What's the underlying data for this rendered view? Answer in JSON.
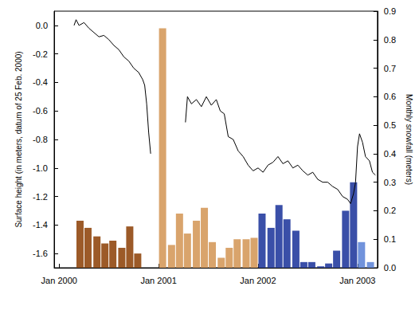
{
  "chart_data": {
    "type": "bar",
    "ylabel": "Surface height (in meters, datum of 25 Feb. 2000)",
    "y2label": "Monthly snowfall (meters)",
    "xlim": [
      1999.95,
      2003.2
    ],
    "xticks": [
      {
        "value": 2000,
        "label": "Jan 2000"
      },
      {
        "value": 2001,
        "label": "Jan 2001"
      },
      {
        "value": 2002,
        "label": "Jan 2002"
      },
      {
        "value": 2003,
        "label": "Jan 2003"
      }
    ],
    "ylim": [
      -1.7,
      0.1
    ],
    "yticks": [
      -1.6,
      -1.4,
      -1.2,
      {
        "value": -1.0,
        "label": "-1.0"
      },
      -0.8,
      -0.6,
      -0.4,
      -0.2,
      {
        "value": 0,
        "label": "0.0"
      }
    ],
    "y2lim": [
      0,
      0.9
    ],
    "y2ticks": [
      {
        "value": 0,
        "label": "0.0"
      },
      0.1,
      0.2,
      0.3,
      0.4,
      0.5,
      0.6,
      0.7,
      0.8,
      0.9
    ],
    "grid": false,
    "series": [
      {
        "type": "line",
        "axis": "y",
        "color": "#000000",
        "x": [
          2000.15,
          2000.17,
          2000.2,
          2000.25,
          2000.3,
          2000.35,
          2000.4,
          2000.45,
          2000.5,
          2000.55,
          2000.6,
          2000.65,
          2000.7,
          2000.75,
          2000.8,
          2000.84,
          2000.86,
          2000.88,
          2000.9,
          2000.92,
          2000.96,
          2001.27,
          2001.29,
          2001.33,
          2001.38,
          2001.43,
          2001.48,
          2001.53,
          2001.58,
          2001.62,
          2001.66,
          2001.7,
          2001.75,
          2001.8,
          2001.85,
          2001.9,
          2001.95,
          2002.0,
          2002.05,
          2002.1,
          2002.15,
          2002.2,
          2002.25,
          2002.3,
          2002.35,
          2002.4,
          2002.45,
          2002.5,
          2002.55,
          2002.6,
          2002.65,
          2002.7,
          2002.75,
          2002.8,
          2002.85,
          2002.9,
          2002.93,
          2002.96,
          2002.98,
          2003.0,
          2003.02,
          2003.05,
          2003.08,
          2003.12,
          2003.15,
          2003.18
        ],
        "values": [
          0.0,
          0.04,
          0.0,
          0.02,
          -0.02,
          -0.05,
          -0.08,
          -0.07,
          -0.1,
          -0.14,
          -0.17,
          -0.22,
          -0.25,
          -0.3,
          -0.33,
          -0.38,
          -0.42,
          -0.55,
          -0.75,
          -0.9,
          null,
          -0.68,
          -0.5,
          -0.55,
          -0.52,
          -0.57,
          -0.5,
          -0.56,
          -0.52,
          -0.6,
          -0.62,
          -0.78,
          -0.8,
          -0.88,
          -0.92,
          -0.98,
          -1.02,
          -1.0,
          -1.03,
          -0.98,
          -0.96,
          -0.92,
          -0.97,
          -0.95,
          -1.0,
          -0.98,
          -1.02,
          -1.05,
          -1.03,
          -1.08,
          -1.1,
          -1.1,
          -1.13,
          -1.15,
          -1.2,
          -1.22,
          -1.25,
          -1.18,
          -1.1,
          -0.85,
          -0.76,
          -0.82,
          -0.92,
          -0.95,
          -1.03,
          -1.05
        ]
      },
      {
        "type": "bar",
        "axis": "y2",
        "color": "#9c5a28",
        "x": [
          2000.21,
          2000.29,
          2000.38,
          2000.46,
          2000.54,
          2000.63,
          2000.71,
          2000.79
        ],
        "values": [
          0.165,
          0.14,
          0.11,
          0.085,
          0.095,
          0.07,
          0.145,
          0.05
        ]
      },
      {
        "type": "bar",
        "axis": "y2",
        "color": "#d9a46c",
        "x": [
          2001.04,
          2001.13,
          2001.21,
          2001.29,
          2001.38,
          2001.46,
          2001.54,
          2001.63,
          2001.71,
          2001.79,
          2001.88,
          2001.96
        ],
        "values": [
          0.84,
          0.08,
          0.19,
          0.12,
          0.165,
          0.21,
          0.09,
          0.035,
          0.07,
          0.1,
          0.1,
          0.105
        ]
      },
      {
        "type": "bar",
        "axis": "y2",
        "color": "#3a4fa8",
        "x": [
          2002.04,
          2002.13,
          2002.21,
          2002.29,
          2002.38,
          2002.46,
          2002.54,
          2002.63,
          2002.71,
          2002.79,
          2002.88,
          2002.96
        ],
        "values": [
          0.19,
          0.14,
          0.22,
          0.17,
          0.13,
          0.02,
          0.02,
          0.005,
          0.015,
          0.06,
          0.2,
          0.3
        ]
      },
      {
        "type": "bar",
        "axis": "y2",
        "color": "#7193dc",
        "x": [
          2003.04,
          2003.13
        ],
        "values": [
          0.09,
          0.02
        ]
      }
    ]
  }
}
